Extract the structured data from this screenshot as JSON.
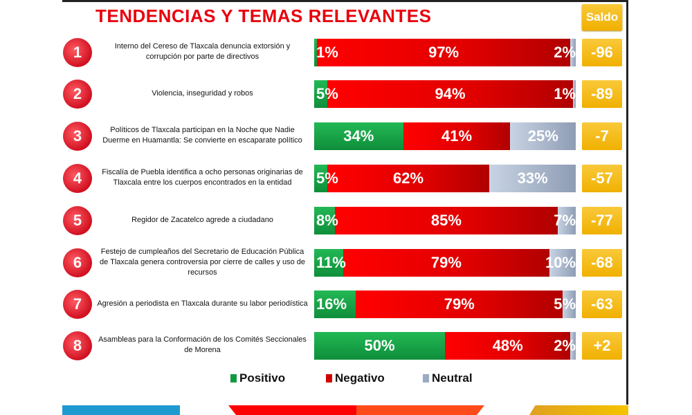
{
  "title": "TENDENCIAS Y TEMAS RELEVANTES",
  "saldo_header": "Saldo",
  "colors": {
    "positivo": "#1aa84a",
    "negativo": "#ff0000",
    "neutral": "#b0bfd3",
    "saldo": "#f5bd1e",
    "title": "#e8000e"
  },
  "chart_data": {
    "type": "bar",
    "stacked": true,
    "orientation": "horizontal",
    "title": "TENDENCIAS Y TEMAS RELEVANTES",
    "legend": [
      "Positivo",
      "Negativo",
      "Neutral"
    ],
    "legend_position": "bottom",
    "rows": [
      {
        "num": "1",
        "label": "Interno del Cereso de Tlaxcala denuncia extorsión y corrupción por parte de directivos",
        "pos": 1,
        "neg": 97,
        "neu": 2,
        "saldo": "-96"
      },
      {
        "num": "2",
        "label": "Violencia, inseguridad y robos",
        "pos": 5,
        "neg": 94,
        "neu": 1,
        "saldo": "-89"
      },
      {
        "num": "3",
        "label": "Políticos de Tlaxcala participan en la Noche que Nadie Duerme en Huamantla: Se convierte en escaparate político",
        "pos": 34,
        "neg": 41,
        "neu": 25,
        "saldo": "-7"
      },
      {
        "num": "4",
        "label": "Fiscalía de Puebla identifica a ocho personas originarias de Tlaxcala entre los cuerpos encontrados en la entidad",
        "pos": 5,
        "neg": 62,
        "neu": 33,
        "saldo": "-57"
      },
      {
        "num": "5",
        "label": "Regidor de Zacatelco agrede a ciudadano",
        "pos": 8,
        "neg": 85,
        "neu": 7,
        "saldo": "-77"
      },
      {
        "num": "6",
        "label": "Festejo de cumpleaños del Secretario de Educación Pública de Tlaxcala genera controversia por cierre de calles y uso de recursos",
        "pos": 11,
        "neg": 79,
        "neu": 10,
        "saldo": "-68"
      },
      {
        "num": "7",
        "label": "Agresión a periodista en Tlaxcala durante su labor periodística",
        "pos": 16,
        "neg": 79,
        "neu": 5,
        "saldo": "-63"
      },
      {
        "num": "8",
        "label": "Asambleas para la Conformación de los Comités Seccionales de Morena",
        "pos": 50,
        "neg": 48,
        "neu": 2,
        "saldo": "+2"
      }
    ]
  }
}
